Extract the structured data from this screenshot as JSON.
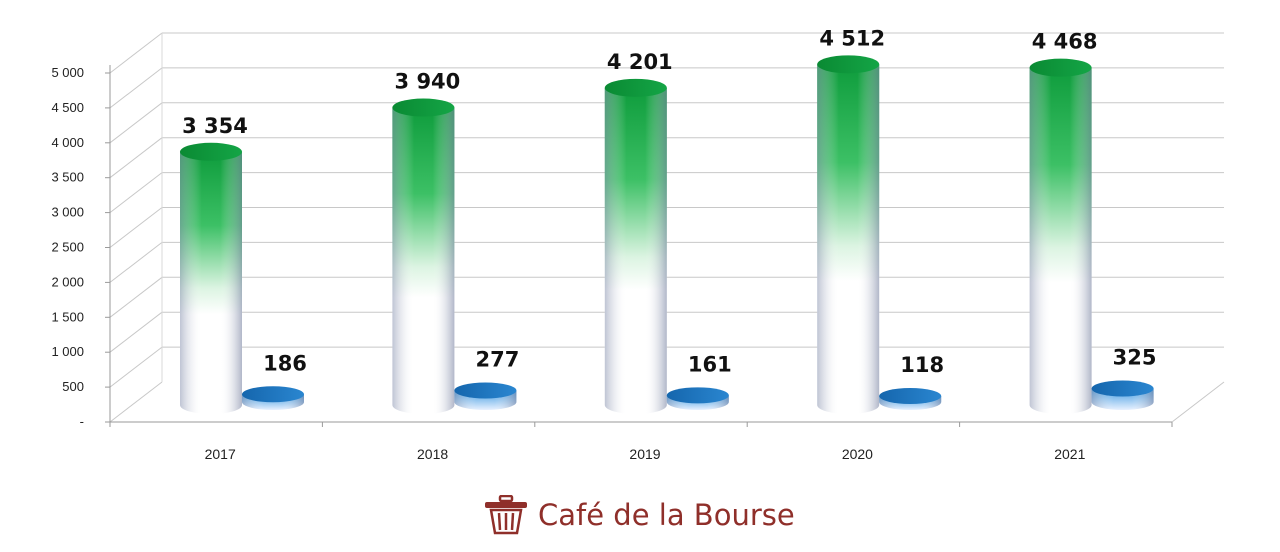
{
  "chart_data": {
    "type": "bar",
    "style": "3d-cylinder",
    "categories": [
      "2017",
      "2018",
      "2019",
      "2020",
      "2021"
    ],
    "series": [
      {
        "values": [
          3354,
          3940,
          4201,
          4512,
          4468
        ],
        "labels": [
          "3 354",
          "3 940",
          "4 201",
          "4 512",
          "4 468"
        ],
        "color": "#0e9c3c"
      },
      {
        "values": [
          186,
          277,
          161,
          118,
          325
        ],
        "labels": [
          "186",
          "277",
          "161",
          "118",
          "325"
        ],
        "color": "#1f78c4"
      }
    ],
    "y_ticks": [
      {
        "value": 0,
        "label": "-"
      },
      {
        "value": 500,
        "label": "500"
      },
      {
        "value": 1000,
        "label": "1 000"
      },
      {
        "value": 1500,
        "label": "1 500"
      },
      {
        "value": 2000,
        "label": "2 000"
      },
      {
        "value": 2500,
        "label": "2 500"
      },
      {
        "value": 3000,
        "label": "3 000"
      },
      {
        "value": 3500,
        "label": "3 500"
      },
      {
        "value": 4000,
        "label": "4 000"
      },
      {
        "value": 4500,
        "label": "4 500"
      },
      {
        "value": 5000,
        "label": "5 000"
      }
    ],
    "ylim": [
      0,
      5000
    ],
    "grid": true,
    "legend": "none"
  },
  "watermark": {
    "text": "Café de la Bourse",
    "color": "#8f2f2a",
    "icon": "wastebasket-icon"
  }
}
